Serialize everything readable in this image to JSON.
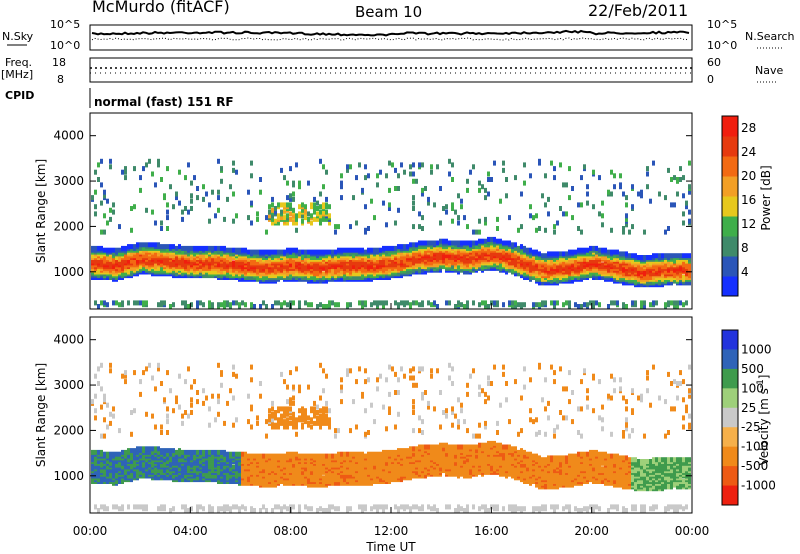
{
  "header": {
    "station": "McMurdo (fitACF)",
    "beam": "Beam 10",
    "date": "22/Feb/2011"
  },
  "top_panels": {
    "nsky_label": "N.Sky",
    "nsearch_label": "N.Search",
    "nsky_ticks": [
      "10^5",
      "10^0"
    ],
    "nsearch_ticks": [
      "10^5",
      "10^0"
    ],
    "freq_label": "Freq.",
    "freq_unit": "[MHz]",
    "freq_ticks": [
      "18",
      "8"
    ],
    "nave_label": "Nave",
    "nave_ticks": [
      "60",
      "0"
    ],
    "cpid_label": "CPID",
    "cpid_text": "normal (fast) 151 RF"
  },
  "chart_data": [
    {
      "type": "heatmap",
      "name": "power",
      "ylabel": "Slant Range [km]",
      "ylim": [
        180,
        4500
      ],
      "yticks": [
        1000,
        2000,
        3000,
        4000
      ],
      "colorbar_label": "Power [dB]",
      "colorbar_ticks": [
        4,
        8,
        12,
        16,
        20,
        24,
        28
      ],
      "colorbar_range": [
        0,
        30
      ],
      "colors": [
        "#1530ff",
        "#2a55b8",
        "#3f8a6a",
        "#3fae4a",
        "#e7c81d",
        "#f39f25",
        "#f36a12",
        "#e63a0e",
        "#f01e0e"
      ],
      "ground_scatter_color": "#9a9a9a",
      "main_band_km": [
        [
          0,
          1150
        ],
        [
          1,
          1100
        ],
        [
          2,
          1250
        ],
        [
          3,
          1200
        ],
        [
          4,
          1150
        ],
        [
          5,
          1150
        ],
        [
          6,
          1100
        ],
        [
          7,
          1050
        ],
        [
          8,
          1100
        ],
        [
          9,
          1050
        ],
        [
          10,
          1100
        ],
        [
          11,
          1100
        ],
        [
          12,
          1150
        ],
        [
          13,
          1250
        ],
        [
          14,
          1300
        ],
        [
          15,
          1250
        ],
        [
          16,
          1350
        ],
        [
          17,
          1200
        ],
        [
          18,
          1000
        ],
        [
          19,
          1050
        ],
        [
          20,
          1150
        ],
        [
          21,
          1050
        ],
        [
          22,
          950
        ],
        [
          23,
          1000
        ],
        [
          24,
          1000
        ]
      ],
      "band_halfwidth_km": 330,
      "band_peak_db": 26
    },
    {
      "type": "heatmap",
      "name": "velocity",
      "ylabel": "Slant Range [km]",
      "xlabel": "Time UT",
      "xticks": [
        "00:00",
        "04:00",
        "08:00",
        "12:00",
        "16:00",
        "20:00",
        "00:00"
      ],
      "ylim": [
        180,
        4500
      ],
      "yticks": [
        1000,
        2000,
        3000,
        4000
      ],
      "colorbar_label": "Velocity [m s^-1]",
      "colorbar_ticks": [
        "1000",
        "500",
        "100",
        "25",
        "-25",
        "-100",
        "-500",
        "-1000"
      ],
      "colors": [
        "#2233dd",
        "#2f63b8",
        "#3f9b4d",
        "#9ed07a",
        "#c9c9c9",
        "#f6b04a",
        "#f08a1a",
        "#ee5a14",
        "#ee2010"
      ],
      "dominant_velocity_ms": -200,
      "ground_scatter_color": "#b7b7b7"
    }
  ],
  "colors": {
    "frame": "#000000",
    "background": "#ffffff"
  }
}
